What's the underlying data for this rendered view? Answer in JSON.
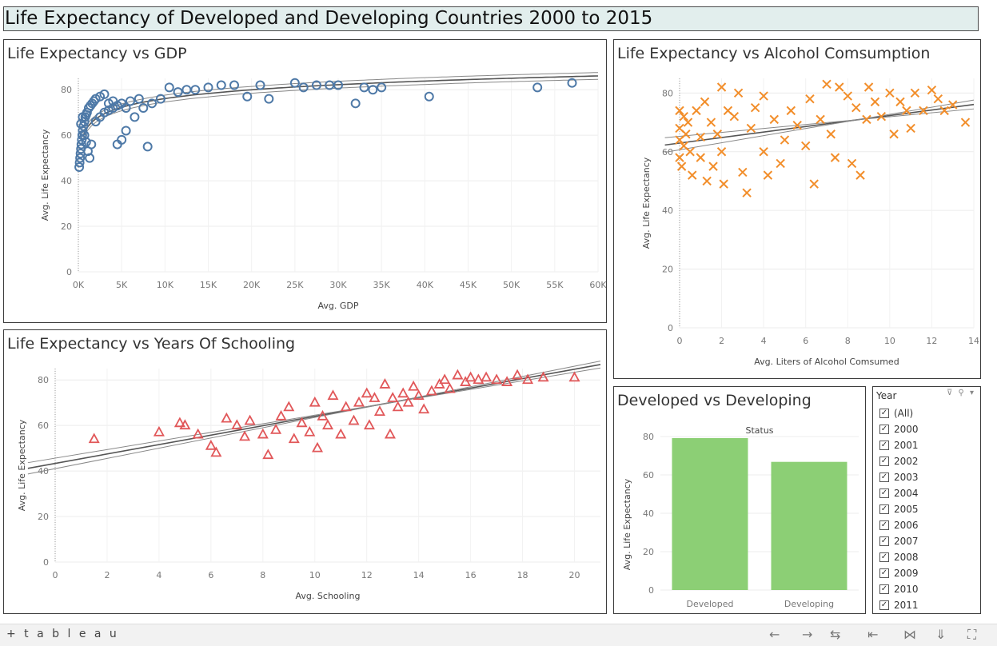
{
  "dashboard": {
    "title": "Life Expectancy of Developed and Developing Countries 2000 to 2015"
  },
  "gdp_chart": {
    "title": "Life Expectancy vs GDP",
    "xlabel": "Avg. GDP",
    "ylabel": "Avg. Life Expectancy",
    "yticks": [
      "0",
      "20",
      "40",
      "60",
      "80"
    ],
    "xticks": [
      "0K",
      "5K",
      "10K",
      "15K",
      "20K",
      "25K",
      "30K",
      "35K",
      "40K",
      "45K",
      "50K",
      "55K",
      "60K"
    ]
  },
  "alcohol_chart": {
    "title": "Life Expectancy vs Alcohol Comsumption",
    "xlabel": "Avg. Liters of Alcohol Comsumed",
    "ylabel": "Avg. Life Expectancy",
    "yticks": [
      "0",
      "20",
      "40",
      "60",
      "80"
    ],
    "xticks": [
      "0",
      "2",
      "4",
      "6",
      "8",
      "10",
      "12",
      "14"
    ]
  },
  "school_chart": {
    "title": "Life Expectancy vs Years Of Schooling",
    "xlabel": "Avg. Schooling",
    "ylabel": "Avg. Life Expectancy",
    "yticks": [
      "0",
      "20",
      "40",
      "60",
      "80"
    ],
    "xticks": [
      "0",
      "2",
      "4",
      "6",
      "8",
      "10",
      "12",
      "14",
      "16",
      "18",
      "20"
    ]
  },
  "status_chart": {
    "title": "Developed vs Developing",
    "header": "Status",
    "ylabel": "Avg. Life Expectancy",
    "yticks": [
      "0",
      "20",
      "40",
      "60",
      "80"
    ]
  },
  "filter": {
    "label": "Year",
    "items": [
      "(All)",
      "2000",
      "2001",
      "2002",
      "2003",
      "2004",
      "2005",
      "2006",
      "2007",
      "2008",
      "2009",
      "2010",
      "2011"
    ]
  },
  "toolbar": {
    "logo": "+ t a b l e a u"
  },
  "chart_data": [
    {
      "type": "scatter",
      "title": "Life Expectancy vs GDP",
      "xlabel": "Avg. GDP",
      "ylabel": "Avg. Life Expectancy",
      "xlim": [
        0,
        60000
      ],
      "ylim": [
        0,
        85
      ],
      "color": "#4e79a7",
      "marker": "circle",
      "trend": "logarithmic",
      "points": [
        [
          100,
          46
        ],
        [
          150,
          48
        ],
        [
          200,
          50
        ],
        [
          250,
          52
        ],
        [
          300,
          54
        ],
        [
          350,
          56
        ],
        [
          400,
          58
        ],
        [
          450,
          60
        ],
        [
          500,
          62
        ],
        [
          600,
          64
        ],
        [
          700,
          66
        ],
        [
          800,
          68
        ],
        [
          900,
          69
        ],
        [
          1000,
          70
        ],
        [
          1200,
          72
        ],
        [
          1400,
          73
        ],
        [
          1600,
          74
        ],
        [
          1800,
          75
        ],
        [
          2000,
          76
        ],
        [
          2500,
          77
        ],
        [
          3000,
          78
        ],
        [
          3500,
          74
        ],
        [
          4000,
          75
        ],
        [
          4500,
          73
        ],
        [
          5000,
          74
        ],
        [
          5500,
          72
        ],
        [
          6000,
          75
        ],
        [
          7000,
          76
        ],
        [
          8000,
          55
        ],
        [
          300,
          65
        ],
        [
          500,
          68
        ],
        [
          700,
          60
        ],
        [
          900,
          57
        ],
        [
          1100,
          53
        ],
        [
          1300,
          50
        ],
        [
          1500,
          56
        ],
        [
          2000,
          66
        ],
        [
          2500,
          68
        ],
        [
          3000,
          70
        ],
        [
          3500,
          71
        ],
        [
          4000,
          72
        ],
        [
          4500,
          56
        ],
        [
          5000,
          58
        ],
        [
          5500,
          62
        ],
        [
          6500,
          68
        ],
        [
          7500,
          72
        ],
        [
          8500,
          74
        ],
        [
          9500,
          76
        ],
        [
          10500,
          81
        ],
        [
          11500,
          79
        ],
        [
          12500,
          80
        ],
        [
          13500,
          80
        ],
        [
          15000,
          81
        ],
        [
          16500,
          82
        ],
        [
          18000,
          82
        ],
        [
          19500,
          77
        ],
        [
          21000,
          82
        ],
        [
          22000,
          76
        ],
        [
          25000,
          83
        ],
        [
          26000,
          81
        ],
        [
          27500,
          82
        ],
        [
          29000,
          82
        ],
        [
          30000,
          82
        ],
        [
          32000,
          74
        ],
        [
          33000,
          81
        ],
        [
          34000,
          80
        ],
        [
          35000,
          81
        ],
        [
          40500,
          77
        ],
        [
          53000,
          81
        ],
        [
          57000,
          83
        ]
      ]
    },
    {
      "type": "scatter",
      "title": "Life Expectancy vs Alcohol Comsumption",
      "xlabel": "Avg. Liters of Alcohol Comsumed",
      "ylabel": "Avg. Life Expectancy",
      "xlim": [
        0,
        14
      ],
      "ylim": [
        0,
        85
      ],
      "color": "#f28e2b",
      "marker": "x",
      "trend": "linear",
      "points": [
        [
          0,
          74
        ],
        [
          0,
          68
        ],
        [
          0,
          64
        ],
        [
          0,
          58
        ],
        [
          0.1,
          55
        ],
        [
          0.2,
          72
        ],
        [
          0.2,
          62
        ],
        [
          0.3,
          66
        ],
        [
          0.4,
          70
        ],
        [
          0.5,
          60
        ],
        [
          0.6,
          52
        ],
        [
          0.8,
          74
        ],
        [
          1,
          58
        ],
        [
          1,
          65
        ],
        [
          1.2,
          77
        ],
        [
          1.3,
          50
        ],
        [
          1.5,
          70
        ],
        [
          1.6,
          55
        ],
        [
          1.8,
          66
        ],
        [
          2,
          82
        ],
        [
          2,
          60
        ],
        [
          2.1,
          49
        ],
        [
          2.3,
          74
        ],
        [
          2.6,
          72
        ],
        [
          2.8,
          80
        ],
        [
          3,
          53
        ],
        [
          3.2,
          46
        ],
        [
          3.4,
          68
        ],
        [
          3.6,
          75
        ],
        [
          4,
          79
        ],
        [
          4,
          60
        ],
        [
          4.2,
          52
        ],
        [
          4.5,
          71
        ],
        [
          4.8,
          56
        ],
        [
          5,
          64
        ],
        [
          5.3,
          74
        ],
        [
          5.6,
          69
        ],
        [
          6,
          62
        ],
        [
          6.2,
          78
        ],
        [
          6.4,
          49
        ],
        [
          6.7,
          71
        ],
        [
          7,
          83
        ],
        [
          7.2,
          66
        ],
        [
          7.4,
          58
        ],
        [
          7.6,
          82
        ],
        [
          8,
          79
        ],
        [
          8.2,
          56
        ],
        [
          8.4,
          75
        ],
        [
          8.6,
          52
        ],
        [
          8.9,
          71
        ],
        [
          9,
          82
        ],
        [
          9.3,
          77
        ],
        [
          9.6,
          72
        ],
        [
          10,
          80
        ],
        [
          10.2,
          66
        ],
        [
          10.5,
          77
        ],
        [
          10.8,
          74
        ],
        [
          11,
          68
        ],
        [
          11.2,
          80
        ],
        [
          11.6,
          74
        ],
        [
          12,
          81
        ],
        [
          12.3,
          78
        ],
        [
          12.6,
          74
        ],
        [
          13,
          76
        ],
        [
          13.6,
          70
        ]
      ]
    },
    {
      "type": "scatter",
      "title": "Life Expectancy vs Years Of Schooling",
      "xlabel": "Avg. Schooling",
      "ylabel": "Avg. Life Expectancy",
      "xlim": [
        0,
        21
      ],
      "ylim": [
        0,
        85
      ],
      "color": "#e15759",
      "marker": "triangle",
      "trend": "linear",
      "points": [
        [
          1.5,
          54
        ],
        [
          4,
          57
        ],
        [
          4.8,
          61
        ],
        [
          5,
          60
        ],
        [
          5.5,
          56
        ],
        [
          6,
          51
        ],
        [
          6.2,
          48
        ],
        [
          6.6,
          63
        ],
        [
          7,
          60
        ],
        [
          7.3,
          55
        ],
        [
          7.5,
          62
        ],
        [
          8,
          56
        ],
        [
          8.2,
          47
        ],
        [
          8.5,
          58
        ],
        [
          8.7,
          64
        ],
        [
          9,
          68
        ],
        [
          9.2,
          54
        ],
        [
          9.5,
          61
        ],
        [
          9.8,
          57
        ],
        [
          10,
          70
        ],
        [
          10.1,
          50
        ],
        [
          10.3,
          64
        ],
        [
          10.5,
          60
        ],
        [
          10.7,
          73
        ],
        [
          11,
          56
        ],
        [
          11.2,
          68
        ],
        [
          11.5,
          62
        ],
        [
          11.7,
          70
        ],
        [
          12,
          74
        ],
        [
          12.1,
          60
        ],
        [
          12.3,
          72
        ],
        [
          12.5,
          66
        ],
        [
          12.7,
          78
        ],
        [
          12.9,
          56
        ],
        [
          13,
          72
        ],
        [
          13.2,
          68
        ],
        [
          13.4,
          74
        ],
        [
          13.6,
          70
        ],
        [
          13.8,
          77
        ],
        [
          14,
          73
        ],
        [
          14.2,
          67
        ],
        [
          14.5,
          75
        ],
        [
          14.8,
          78
        ],
        [
          15,
          80
        ],
        [
          15.2,
          76
        ],
        [
          15.5,
          82
        ],
        [
          15.8,
          79
        ],
        [
          16,
          81
        ],
        [
          16.3,
          80
        ],
        [
          16.6,
          81
        ],
        [
          17,
          80
        ],
        [
          17.4,
          79
        ],
        [
          17.8,
          82
        ],
        [
          18.2,
          80
        ],
        [
          18.8,
          81
        ],
        [
          20,
          81
        ]
      ]
    },
    {
      "type": "bar",
      "title": "Developed vs Developing",
      "categories": [
        "Developed",
        "Developing"
      ],
      "values": [
        79.2,
        66.8
      ],
      "ylabel": "Avg. Life Expectancy",
      "ylim": [
        0,
        85
      ],
      "color": "#8ccf75"
    }
  ]
}
